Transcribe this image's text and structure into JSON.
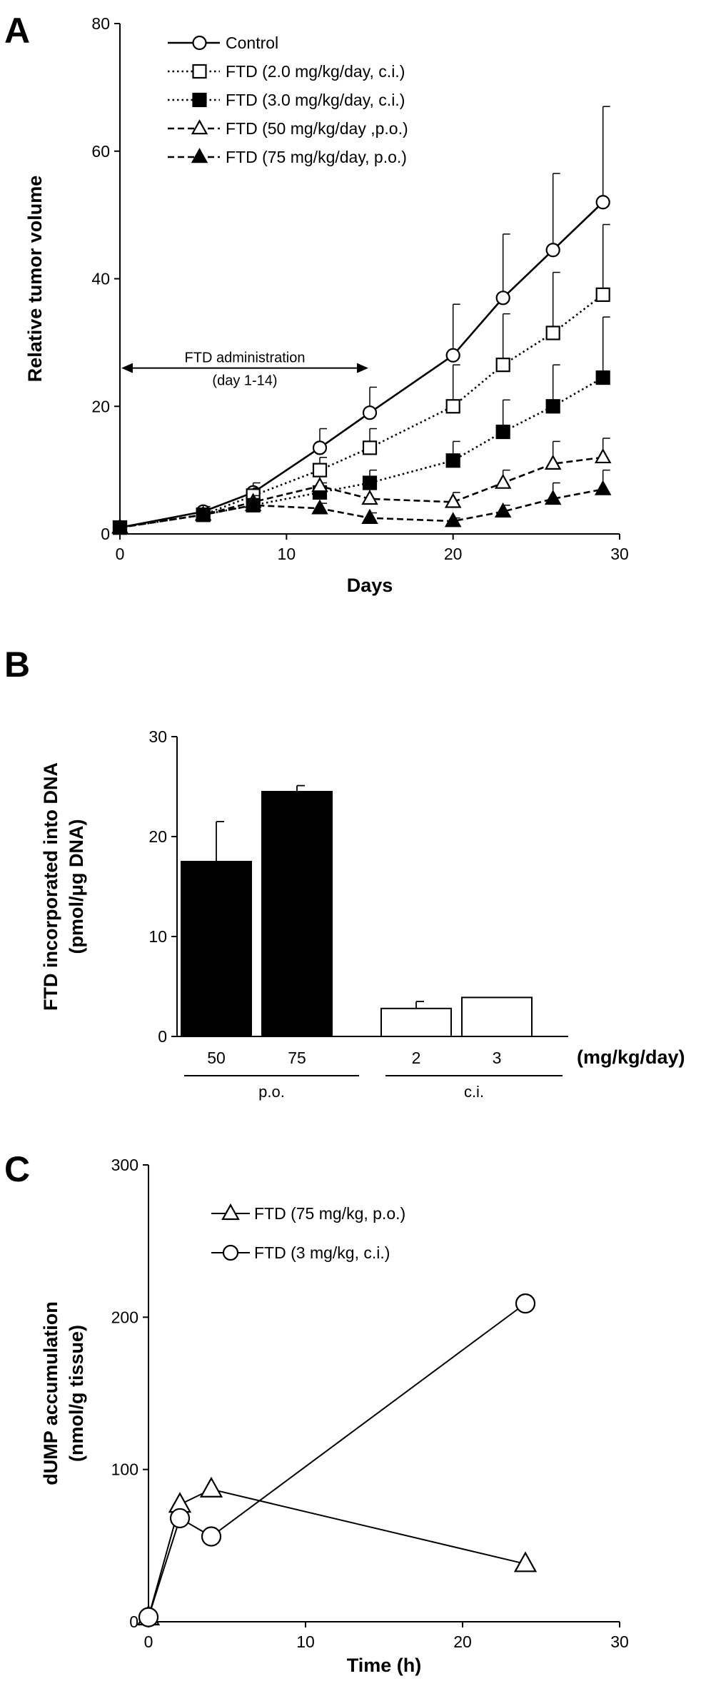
{
  "panels": {
    "a": "A",
    "b": "B",
    "c": "C"
  },
  "chart_data": [
    {
      "type": "line",
      "xlabel": "Days",
      "ylabel": "Relative tumor volume",
      "xlim": [
        0,
        30
      ],
      "ylim": [
        0,
        80
      ],
      "xticks": [
        0,
        10,
        20,
        30
      ],
      "yticks": [
        0,
        20,
        40,
        60,
        80
      ],
      "legend_position": "top-left",
      "annotation": {
        "line1": "FTD administration",
        "line2": "(day 1-14)",
        "x_start": 0,
        "x_end": 15,
        "y": 26
      },
      "series": [
        {
          "name": "Control",
          "marker": "open-circle",
          "linestyle": "solid",
          "x": [
            0,
            5,
            8,
            12,
            15,
            20,
            23,
            26,
            29
          ],
          "y": [
            1,
            3.5,
            6.5,
            13.5,
            19,
            28,
            37,
            44.5,
            52
          ],
          "err": [
            0,
            0.8,
            1.5,
            3,
            4,
            8,
            10,
            12,
            15
          ]
        },
        {
          "name": "FTD (2.0 mg/kg/day, c.i.)",
          "marker": "open-square",
          "linestyle": "dotted",
          "x": [
            0,
            5,
            8,
            12,
            15,
            20,
            23,
            26,
            29
          ],
          "y": [
            1,
            3,
            6,
            10,
            13.5,
            20,
            26.5,
            31.5,
            37.5
          ],
          "err": [
            0,
            0.6,
            1.2,
            2,
            3,
            6.5,
            8,
            9.5,
            11
          ]
        },
        {
          "name": "FTD (3.0 mg/kg/day, c.i.)",
          "marker": "filled-square",
          "linestyle": "dotted",
          "x": [
            0,
            5,
            8,
            12,
            15,
            20,
            23,
            26,
            29
          ],
          "y": [
            1,
            3,
            4.5,
            6.5,
            8,
            11.5,
            16,
            20,
            24.5
          ],
          "err": [
            0,
            0.5,
            0.8,
            1.5,
            2,
            3,
            5,
            6.5,
            9.5
          ]
        },
        {
          "name": "FTD (50 mg/kg/day ,p.o.)",
          "marker": "open-triangle",
          "linestyle": "dashed",
          "x": [
            0,
            5,
            8,
            12,
            15,
            20,
            23,
            26,
            29
          ],
          "y": [
            1,
            3,
            5,
            7.5,
            5.5,
            5,
            8,
            11,
            12
          ],
          "err": [
            0,
            0.5,
            1,
            1.5,
            1.5,
            1.5,
            2,
            3.5,
            3
          ]
        },
        {
          "name": "FTD (75 mg/kg/day, p.o.)",
          "marker": "filled-triangle",
          "linestyle": "dashed",
          "x": [
            0,
            5,
            8,
            12,
            15,
            20,
            23,
            26,
            29
          ],
          "y": [
            1,
            3,
            4.5,
            4,
            2.5,
            2,
            3.5,
            5.5,
            7
          ],
          "err": [
            0,
            0.5,
            0.5,
            0.8,
            0.8,
            0.5,
            1,
            2.5,
            3
          ]
        }
      ]
    },
    {
      "type": "bar",
      "ylabel_line1": "FTD incorporated into DNA",
      "ylabel_line2": "(pmol/μg DNA)",
      "ylim": [
        0,
        30
      ],
      "yticks": [
        0,
        10,
        20,
        30
      ],
      "categories": [
        "50",
        "75",
        "2",
        "3"
      ],
      "values": [
        17.5,
        24.5,
        2.8,
        3.9
      ],
      "err": [
        4,
        0.6,
        0.7,
        0
      ],
      "fill": [
        "#000000",
        "#000000",
        "#ffffff",
        "#ffffff"
      ],
      "unit_label": "(mg/kg/day)",
      "groups": [
        {
          "label": "p.o.",
          "categories": [
            "50",
            "75"
          ]
        },
        {
          "label": "c.i.",
          "categories": [
            "2",
            "3"
          ]
        }
      ]
    },
    {
      "type": "line",
      "xlabel": "Time (h)",
      "ylabel_line1": "dUMP accumulation",
      "ylabel_line2": "(nmol/g tissue)",
      "xlim": [
        0,
        30
      ],
      "ylim": [
        0,
        300
      ],
      "xticks": [
        0,
        10,
        20,
        30
      ],
      "yticks": [
        0,
        100,
        200,
        300
      ],
      "legend_position": "top-left",
      "series": [
        {
          "name": "FTD (75 mg/kg, p.o.)",
          "marker": "open-triangle",
          "linestyle": "solid",
          "x": [
            0,
            2,
            4,
            24
          ],
          "y": [
            3,
            77,
            87,
            38
          ]
        },
        {
          "name": "FTD (3 mg/kg, c.i.)",
          "marker": "open-circle",
          "linestyle": "solid",
          "x": [
            0,
            2,
            4,
            24
          ],
          "y": [
            3,
            68,
            56,
            209
          ]
        }
      ]
    }
  ]
}
